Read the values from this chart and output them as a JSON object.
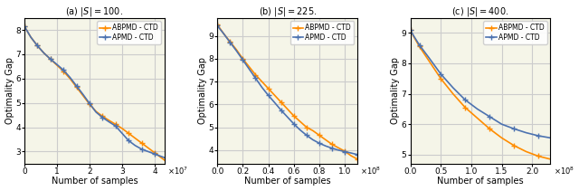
{
  "panels": [
    {
      "subtitle": "(a) $|S| = 100$.",
      "xlabel": "Number of samples",
      "ylabel": "Optimality Gap",
      "xmax": 43000000.0,
      "xscale_exp": 7,
      "xticks": [
        0,
        10000000.0,
        20000000.0,
        30000000.0,
        40000000.0
      ],
      "xtick_labels": [
        "0",
        "1",
        "2",
        "3",
        "4"
      ],
      "ylim": [
        2.5,
        8.5
      ],
      "yticks": [
        3,
        4,
        5,
        6,
        7,
        8
      ],
      "abpmd_x": [
        0,
        2000000.0,
        4000000.0,
        6000000.0,
        8000000.0,
        10000000.0,
        12000000.0,
        14000000.0,
        16000000.0,
        18000000.0,
        20000000.0,
        22000000.0,
        24000000.0,
        26000000.0,
        28000000.0,
        30000000.0,
        32000000.0,
        34000000.0,
        36000000.0,
        38000000.0,
        40000000.0,
        43000000.0
      ],
      "abpmd_y": [
        8.15,
        7.7,
        7.35,
        7.05,
        6.8,
        6.55,
        6.3,
        6.0,
        5.65,
        5.3,
        4.95,
        4.65,
        4.45,
        4.28,
        4.12,
        3.95,
        3.75,
        3.55,
        3.35,
        3.15,
        2.95,
        2.65
      ],
      "apmd_x": [
        0,
        2000000.0,
        4000000.0,
        6000000.0,
        8000000.0,
        10000000.0,
        12000000.0,
        14000000.0,
        16000000.0,
        18000000.0,
        20000000.0,
        22000000.0,
        24000000.0,
        26000000.0,
        28000000.0,
        30000000.0,
        32000000.0,
        34000000.0,
        36000000.0,
        38000000.0,
        40000000.0,
        43000000.0
      ],
      "apmd_y": [
        8.15,
        7.7,
        7.35,
        7.05,
        6.8,
        6.58,
        6.35,
        6.05,
        5.7,
        5.35,
        4.98,
        4.62,
        4.4,
        4.22,
        4.05,
        3.75,
        3.45,
        3.25,
        3.1,
        3.0,
        2.9,
        2.75
      ]
    },
    {
      "subtitle": "(b) $|S| = 225$.",
      "xlabel": "Number of samples",
      "ylabel": "Optimality Gap",
      "xmax": 110000000.0,
      "xscale_exp": 8,
      "xticks": [
        0,
        20000000.0,
        40000000.0,
        60000000.0,
        80000000.0,
        100000000.0
      ],
      "xtick_labels": [
        "0.0",
        "0.2",
        "0.4",
        "0.6",
        "0.8",
        "1.0"
      ],
      "ylim": [
        3.4,
        9.8
      ],
      "yticks": [
        4,
        5,
        6,
        7,
        8,
        9
      ],
      "abpmd_x": [
        0,
        5000000.0,
        10000000.0,
        15000000.0,
        20000000.0,
        25000000.0,
        30000000.0,
        35000000.0,
        40000000.0,
        45000000.0,
        50000000.0,
        55000000.0,
        60000000.0,
        65000000.0,
        70000000.0,
        75000000.0,
        80000000.0,
        85000000.0,
        90000000.0,
        95000000.0,
        100000000.0,
        105000000.0,
        110000000.0
      ],
      "abpmd_y": [
        9.5,
        9.1,
        8.75,
        8.4,
        8.0,
        7.65,
        7.3,
        7.0,
        6.7,
        6.4,
        6.1,
        5.8,
        5.5,
        5.25,
        5.0,
        4.85,
        4.65,
        4.45,
        4.25,
        4.1,
        3.95,
        3.75,
        3.6
      ],
      "apmd_x": [
        0,
        5000000.0,
        10000000.0,
        15000000.0,
        20000000.0,
        25000000.0,
        30000000.0,
        35000000.0,
        40000000.0,
        45000000.0,
        50000000.0,
        55000000.0,
        60000000.0,
        65000000.0,
        70000000.0,
        75000000.0,
        80000000.0,
        85000000.0,
        90000000.0,
        95000000.0,
        100000000.0,
        105000000.0,
        110000000.0
      ],
      "apmd_y": [
        9.45,
        9.1,
        8.72,
        8.35,
        7.95,
        7.55,
        7.15,
        6.75,
        6.4,
        6.08,
        5.75,
        5.45,
        5.15,
        4.88,
        4.65,
        4.45,
        4.3,
        4.18,
        4.08,
        4.0,
        3.93,
        3.87,
        3.8
      ]
    },
    {
      "subtitle": "(c) $|S| = 400$.",
      "xlabel": "Number of samples",
      "ylabel": "Optimality Gap",
      "xmax": 230000000.0,
      "xscale_exp": 8,
      "xticks": [
        0,
        50000000.0,
        100000000.0,
        150000000.0,
        200000000.0
      ],
      "xtick_labels": [
        "0.0",
        "0.5",
        "1.0",
        "1.5",
        "2.0"
      ],
      "ylim": [
        4.7,
        9.5
      ],
      "yticks": [
        5,
        6,
        7,
        8,
        9
      ],
      "abpmd_x": [
        0,
        5000000.0,
        15000000.0,
        30000000.0,
        50000000.0,
        70000000.0,
        90000000.0,
        110000000.0,
        130000000.0,
        150000000.0,
        170000000.0,
        190000000.0,
        210000000.0,
        230000000.0
      ],
      "abpmd_y": [
        9.1,
        8.9,
        8.55,
        8.1,
        7.5,
        7.0,
        6.55,
        6.2,
        5.85,
        5.55,
        5.3,
        5.1,
        4.95,
        4.85
      ],
      "apmd_x": [
        0,
        5000000.0,
        15000000.0,
        30000000.0,
        50000000.0,
        70000000.0,
        90000000.0,
        110000000.0,
        130000000.0,
        150000000.0,
        170000000.0,
        190000000.0,
        210000000.0,
        230000000.0
      ],
      "apmd_y": [
        9.1,
        8.92,
        8.6,
        8.2,
        7.65,
        7.2,
        6.8,
        6.5,
        6.25,
        6.0,
        5.85,
        5.72,
        5.62,
        5.55
      ]
    }
  ],
  "abpmd_color": "#FF8C00",
  "apmd_color": "#4C72B0",
  "marker": "+",
  "marker_size": 4,
  "linewidth": 1.2,
  "legend_labels": [
    "ABPMD - CTD",
    "APMD - CTD"
  ],
  "grid_color": "#cccccc",
  "grid_linewidth": 0.8,
  "bg_color": "#f5f5e8"
}
